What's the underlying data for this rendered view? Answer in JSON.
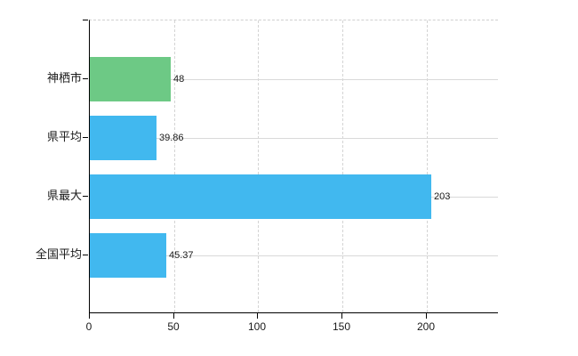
{
  "page": {
    "background_color": "#ffffff"
  },
  "chart_data": {
    "type": "bar",
    "orientation": "horizontal",
    "title": "",
    "xlabel": "",
    "ylabel": "",
    "categories": [
      "神栖市",
      "県平均",
      "県最大",
      "全国平均"
    ],
    "values": [
      48,
      39.86,
      203,
      45.37
    ],
    "value_labels": [
      "48",
      "39.86",
      "203",
      "45.37"
    ],
    "bar_colors": [
      "#6dc985",
      "#41b8ef",
      "#41b8ef",
      "#41b8ef"
    ],
    "highlight_color": "#6dc985",
    "default_bar_color": "#41b8ef",
    "x_ticks": [
      0,
      50,
      100,
      150,
      200
    ],
    "x_tick_labels": [
      "0",
      "50",
      "100",
      "150",
      "200"
    ],
    "xlim": [
      0,
      243
    ],
    "grid": true,
    "legend_position": "none",
    "axis_color": "#000000",
    "gridline_color": "#d9d9d9",
    "value_label_color": "#1a1a1a"
  }
}
